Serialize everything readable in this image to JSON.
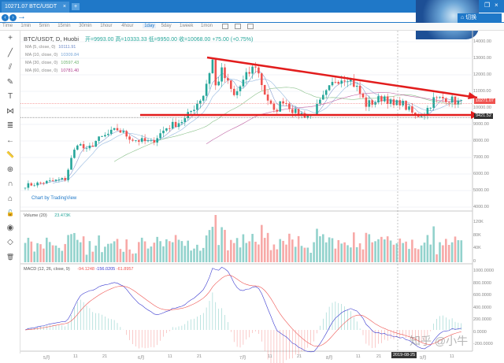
{
  "tab": {
    "title": "10271.07 BTC/USDT",
    "close": "×",
    "new": "+"
  },
  "window": {
    "minimize": "–",
    "restore": "❐",
    "close": "×",
    "home_label": "切换"
  },
  "timeframes": [
    "Time",
    "1min",
    "5min",
    "15min",
    "30min",
    "1hour",
    "4hour",
    "1day",
    "5day",
    "1week",
    "1mon"
  ],
  "active_timeframe": "1day",
  "legend": {
    "symbol": "BTC/USDT, D, Huobi",
    "open": "开=9993.00",
    "high": "高=10333.33",
    "low": "低=9950.00",
    "close": "收=10068.00",
    "change": "+75.00 (+0.75%)"
  },
  "ma": [
    {
      "label": "MA (5, close, 0)",
      "value": "10111.91",
      "color": "#6a86c6"
    },
    {
      "label": "MA (10, close, 0)",
      "value": "10309.84",
      "color": "#7aa7d8"
    },
    {
      "label": "MA (30, close, 0)",
      "value": "10597.43",
      "color": "#6fb36f"
    },
    {
      "label": "MA (60, close, 0)",
      "value": "10781.40",
      "color": "#b0408f"
    }
  ],
  "price_axis": [
    "14000.00",
    "13000.00",
    "12000.00",
    "11000.00",
    "10000.00",
    "9000.00",
    "8000.00",
    "7000.00",
    "6000.00",
    "5000.00",
    "4000.00"
  ],
  "last_price_label": "10271.07",
  "support_label": "9421.52",
  "volume": {
    "label": "Volume (20)",
    "value": "23.473K",
    "axis": [
      "120K",
      "80K",
      "40K",
      "0"
    ]
  },
  "macd": {
    "label": "MACD (12, 26, close, 9)",
    "v1": "-94.1248",
    "v2": "-156.0205",
    "v3": "-61.8957",
    "axis": [
      "1000.0000",
      "800.0000",
      "600.0000",
      "400.0000",
      "200.0000",
      "0.0000",
      "-200.0000"
    ]
  },
  "time_axis": [
    "5月",
    "11",
    "21",
    "6月",
    "11",
    "21",
    "7月",
    "11",
    "21",
    "8月",
    "11",
    "21",
    "9月",
    "11"
  ],
  "crosshair_date": "2019-08-25",
  "attribution": "Chart by TradingView",
  "watermark": "知乎 @小牛",
  "colors": {
    "up": "#26a69a",
    "down": "#ef5350",
    "trend": "#e21d1d",
    "accent": "#1f78c8"
  },
  "chart_data": {
    "type": "candlestick",
    "start_date": "2019-04-25",
    "days": 143,
    "close_keypoints": [
      [
        0,
        5300
      ],
      [
        13,
        5700
      ],
      [
        15,
        6900
      ],
      [
        17,
        7900
      ],
      [
        20,
        7400
      ],
      [
        23,
        8000
      ],
      [
        30,
        8700
      ],
      [
        35,
        8100
      ],
      [
        41,
        7900
      ],
      [
        46,
        8800
      ],
      [
        52,
        9300
      ],
      [
        58,
        10800
      ],
      [
        61,
        12900
      ],
      [
        62,
        11300
      ],
      [
        64,
        12200
      ],
      [
        68,
        10700
      ],
      [
        72,
        11900
      ],
      [
        75,
        12600
      ],
      [
        78,
        10900
      ],
      [
        81,
        9700
      ],
      [
        84,
        10500
      ],
      [
        88,
        9700
      ],
      [
        93,
        9500
      ],
      [
        96,
        10300
      ],
      [
        101,
        11700
      ],
      [
        105,
        11900
      ],
      [
        108,
        11200
      ],
      [
        111,
        10200
      ],
      [
        114,
        10400
      ],
      [
        117,
        10700
      ],
      [
        120,
        10100
      ],
      [
        122,
        10400
      ],
      [
        127,
        9500
      ],
      [
        130,
        9700
      ],
      [
        133,
        10500
      ],
      [
        137,
        10600
      ],
      [
        142,
        10270
      ]
    ],
    "trendlines": [
      {
        "from": [
          "2019-06-26",
          13000
        ],
        "to": [
          "2019-09-16",
          10600
        ]
      },
      {
        "from": [
          "2019-06-10",
          9500
        ],
        "to": [
          "2019-09-16",
          9400
        ]
      }
    ]
  }
}
